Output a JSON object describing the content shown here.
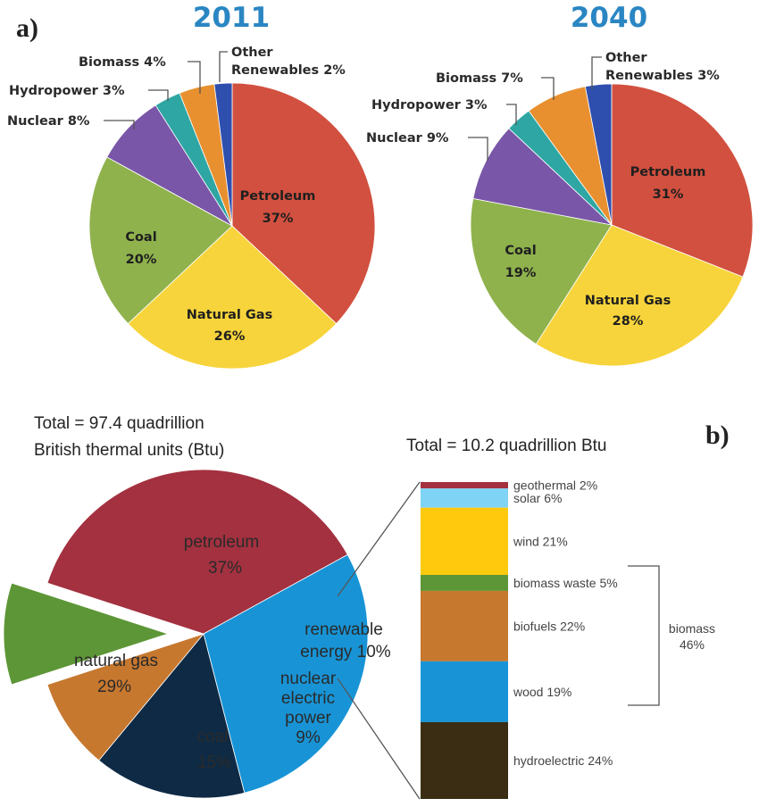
{
  "panel_a_letter": "a)",
  "panel_b_letter": "b)",
  "chart_data": [
    {
      "type": "pie",
      "title": "2011",
      "slices": [
        {
          "label": "Petroleum",
          "value": 37,
          "pct": "37%",
          "color": "#d2503f"
        },
        {
          "label": "Natural Gas",
          "value": 26,
          "pct": "26%",
          "color": "#f7d43b"
        },
        {
          "label": "Coal",
          "value": 20,
          "pct": "20%",
          "color": "#8fb24d"
        },
        {
          "label": "Nuclear",
          "value": 8,
          "pct": "8%",
          "color": "#7956a8"
        },
        {
          "label": "Hydropower",
          "value": 3,
          "pct": "3%",
          "color": "#2ea6a3"
        },
        {
          "label": "Biomass",
          "value": 4,
          "pct": "4%",
          "color": "#e8902f"
        },
        {
          "label": "Other Renewables",
          "value": 2,
          "pct": "2%",
          "color": "#2f4fae"
        }
      ],
      "external_labels": {
        "nuclear": "Nuclear 8%",
        "hydro": "Hydropower 3%",
        "biomass": "Biomass 4%",
        "other_1": "Other",
        "other_2": "Renewables 2%"
      }
    },
    {
      "type": "pie",
      "title": "2040",
      "slices": [
        {
          "label": "Petroleum",
          "value": 31,
          "pct": "31%",
          "color": "#d2503f"
        },
        {
          "label": "Natural Gas",
          "value": 28,
          "pct": "28%",
          "color": "#f7d43b"
        },
        {
          "label": "Coal",
          "value": 19,
          "pct": "19%",
          "color": "#8fb24d"
        },
        {
          "label": "Nuclear",
          "value": 9,
          "pct": "9%",
          "color": "#7956a8"
        },
        {
          "label": "Hydropower",
          "value": 3,
          "pct": "3%",
          "color": "#2ea6a3"
        },
        {
          "label": "Biomass",
          "value": 7,
          "pct": "7%",
          "color": "#e8902f"
        },
        {
          "label": "Other Renewables",
          "value": 3,
          "pct": "3%",
          "color": "#2f4fae"
        }
      ],
      "external_labels": {
        "nuclear": "Nuclear 9%",
        "hydro": "Hydropower 3%",
        "biomass": "Biomass 7%",
        "other_1": "Other",
        "other_2": "Renewables 3%"
      }
    },
    {
      "type": "pie",
      "title_line1": "Total = 97.4 quadrillion",
      "title_line2": "British thermal units (Btu)",
      "slices": [
        {
          "label": "petroleum",
          "value": 37,
          "pct": "37%",
          "color": "#a3313f"
        },
        {
          "label": "natural gas",
          "value": 29,
          "pct": "29%",
          "color": "#1894d6"
        },
        {
          "label": "coal",
          "value": 15,
          "pct": "15%",
          "color": "#0e2a45"
        },
        {
          "label": "nuclear electric power",
          "value": 9,
          "pct": "9%",
          "color": "#c7782f"
        },
        {
          "label": "renewable energy",
          "value": 10,
          "pct": "10%",
          "color": "#5d9636"
        }
      ],
      "label_lines": {
        "petroleum": [
          "petroleum",
          "37%"
        ],
        "natural_gas": [
          "natural gas",
          "29%"
        ],
        "coal": [
          "coal",
          "15%"
        ],
        "nuclear": [
          "nuclear",
          "electric",
          "power",
          "9%"
        ],
        "renewable": [
          "renewable",
          "energy 10%"
        ]
      }
    },
    {
      "type": "bar",
      "stacked": true,
      "title": "Total = 10.2 quadrillion Btu",
      "segments": [
        {
          "label": "geothermal 2%",
          "value": 2,
          "color": "#a3313f"
        },
        {
          "label": "solar 6%",
          "value": 6,
          "color": "#7fd3f4"
        },
        {
          "label": "wind 21%",
          "value": 21,
          "color": "#ffc90e"
        },
        {
          "label": "biomass waste 5%",
          "value": 5,
          "color": "#5d9636"
        },
        {
          "label": "biofuels 22%",
          "value": 22,
          "color": "#c7782f"
        },
        {
          "label": "wood 19%",
          "value": 19,
          "color": "#1894d6"
        },
        {
          "label": "hydroelectric 24%",
          "value": 24,
          "color": "#3b2d14"
        }
      ],
      "group_label": [
        "biomass",
        "46%"
      ]
    }
  ]
}
